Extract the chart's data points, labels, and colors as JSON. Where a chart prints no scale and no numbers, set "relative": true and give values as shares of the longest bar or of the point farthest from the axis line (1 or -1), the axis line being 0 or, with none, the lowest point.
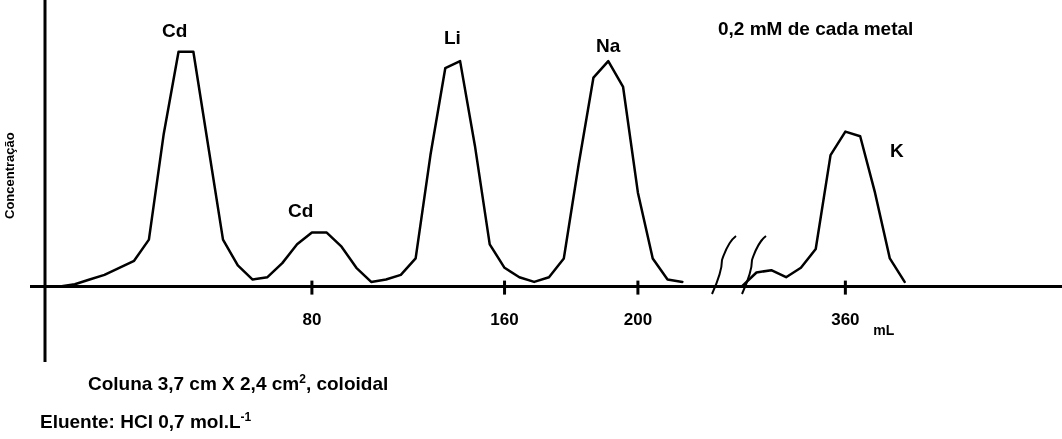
{
  "chart_data": {
    "type": "line",
    "relative": true,
    "ylabel": "Concentração",
    "xlabel": "mL",
    "grid": false,
    "legend": false,
    "marker": "none",
    "line_style": "solid",
    "categories": [
      null,
      null,
      null,
      null,
      null,
      null,
      null,
      null,
      null,
      null,
      null,
      null,
      null,
      null,
      null,
      null,
      null,
      "80",
      null,
      null,
      null,
      null,
      null,
      null,
      null,
      null,
      null,
      null,
      null,
      null,
      "160",
      null,
      null,
      null,
      null,
      null,
      null,
      null,
      null,
      "200",
      null,
      null,
      null,
      null,
      null,
      null,
      null,
      null,
      null,
      null,
      null,
      null,
      null,
      "360",
      null,
      null,
      null,
      null,
      null,
      null,
      null,
      null,
      null,
      null,
      null,
      null,
      null
    ],
    "series": [
      {
        "color": "#000000",
        "values": [
          0,
          0.01,
          0.03,
          0.05,
          0.08,
          0.11,
          0.2,
          0.65,
          1,
          1,
          0.6,
          0.2,
          0.09,
          0.03,
          0.04,
          0.1,
          0.18,
          0.23,
          0.23,
          0.17,
          0.08,
          0.02,
          0.03,
          0.05,
          0.12,
          0.56,
          0.93,
          0.96,
          0.6,
          0.18,
          0.08,
          0.04,
          0.02,
          0.04,
          0.12,
          0.52,
          0.89,
          0.96,
          0.85,
          0.4,
          0.12,
          0.03,
          0.02,
          null,
          null,
          null,
          0.0,
          0.06,
          0.07,
          0.04,
          0.08,
          0.16,
          0.56,
          0.66,
          0.64,
          0.4,
          0.12,
          0.02,
          null,
          null,
          null,
          null,
          null,
          null,
          null,
          null,
          null
        ]
      }
    ],
    "annotations": [
      "Cd",
      "Cd",
      "Li",
      "Na",
      "K",
      "0,2 mM de cada metal",
      "Coluna 3,7 cm X 2,4 cm$^{2}$, coloidal",
      "Eluente: HCl 0,7 mol.L$^{-1}$"
    ]
  }
}
